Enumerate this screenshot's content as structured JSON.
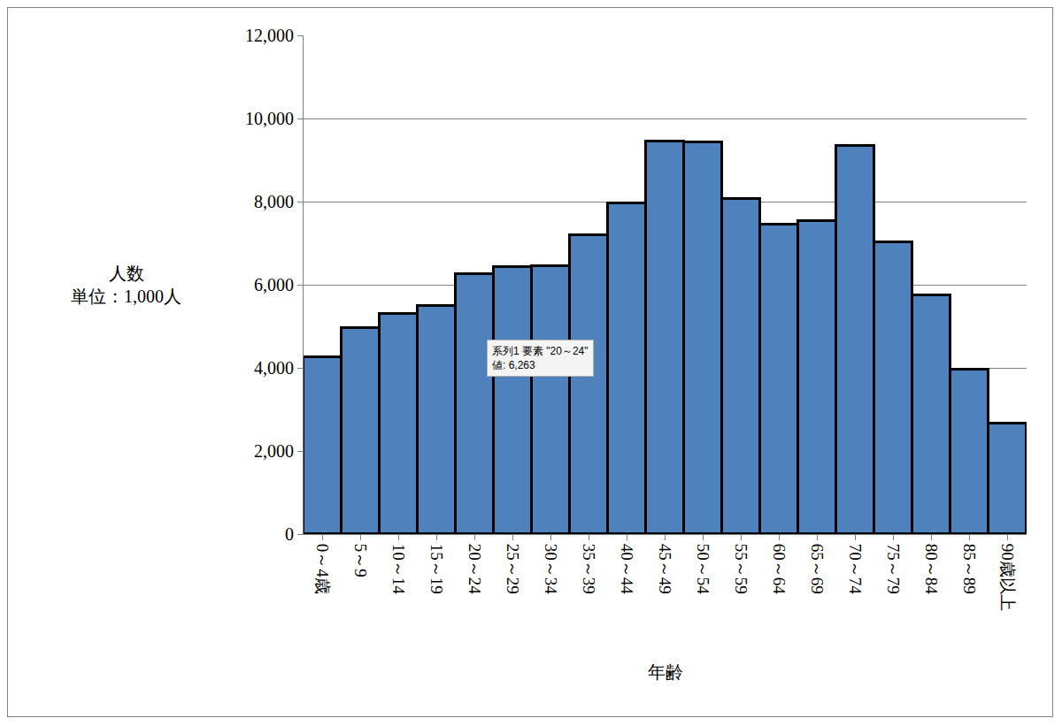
{
  "chart_data": {
    "type": "bar",
    "x_label": "年齢",
    "y_label": "人数\n単位：1,000人",
    "annotations": [
      "系列1 要素 \"20～24\"\n値: 6,263"
    ],
    "categories": [
      "0～4歳",
      "5～9",
      "10～14",
      "15～19",
      "20～24",
      "25～29",
      "30～34",
      "35～39",
      "40～44",
      "45～49",
      "50～54",
      "55～59",
      "60～64",
      "65～69",
      "70～74",
      "75～79",
      "80～84",
      "85～89",
      "90歳以上"
    ],
    "values": [
      4250,
      4950,
      5300,
      5500,
      6263,
      6420,
      6450,
      7200,
      7950,
      9450,
      9430,
      8060,
      7450,
      7530,
      9340,
      7030,
      5740,
      3950,
      2650
    ],
    "color": "#4f81bd",
    "ylim": [
      0,
      12000
    ],
    "yticks": [
      0,
      {
        "value": 2000,
        "label": "2,000"
      },
      {
        "value": 4000,
        "label": "4,000"
      },
      {
        "value": 6000,
        "label": "6,000"
      },
      {
        "value": 8000,
        "label": "8,000"
      },
      {
        "value": 10000,
        "label": "10,000"
      },
      {
        "value": 12000,
        "label": "12,000"
      }
    ],
    "grid": true
  }
}
